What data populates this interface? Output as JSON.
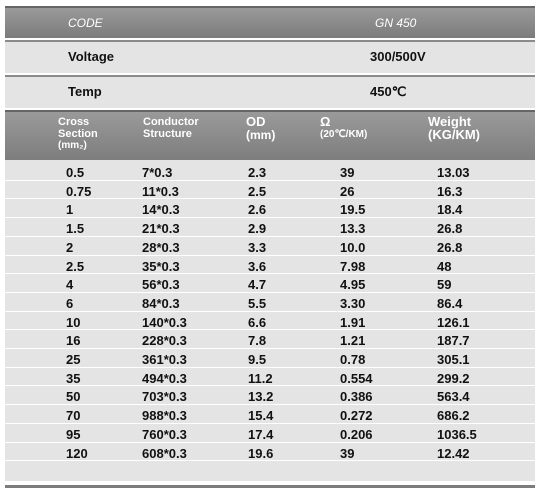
{
  "header": {
    "label": "CODE",
    "value": "GN 450"
  },
  "specs": [
    {
      "label": "Voltage",
      "value": "300/500V"
    },
    {
      "label": "Temp",
      "value": "450℃"
    }
  ],
  "table": {
    "columns": [
      [
        "Cross",
        "Section",
        "(mm₂)"
      ],
      [
        "Conductor",
        "Structure"
      ],
      [
        "OD",
        "(mm)"
      ],
      [
        "Ω",
        "(20℃/KM)"
      ],
      [
        "Weight",
        "(KG/KM)"
      ]
    ],
    "rows": [
      [
        "0.5",
        "7*0.3",
        "2.3",
        "39",
        "13.03"
      ],
      [
        "0.75",
        "11*0.3",
        "2.5",
        "26",
        "16.3"
      ],
      [
        "1",
        "14*0.3",
        "2.6",
        "19.5",
        "18.4"
      ],
      [
        "1.5",
        "21*0.3",
        "2.9",
        "13.3",
        "26.8"
      ],
      [
        "2",
        "28*0.3",
        "3.3",
        "10.0",
        "26.8"
      ],
      [
        "2.5",
        "35*0.3",
        "3.6",
        "7.98",
        "48"
      ],
      [
        "4",
        "56*0.3",
        "4.7",
        "4.95",
        "59"
      ],
      [
        "6",
        "84*0.3",
        "5.5",
        "3.30",
        "86.4"
      ],
      [
        "10",
        "140*0.3",
        "6.6",
        "1.91",
        "126.1"
      ],
      [
        "16",
        "228*0.3",
        "7.8",
        "1.21",
        "187.7"
      ],
      [
        "25",
        "361*0.3",
        "9.5",
        "0.78",
        "305.1"
      ],
      [
        "35",
        "494*0.3",
        "11.2",
        "0.554",
        "299.2"
      ],
      [
        "50",
        "703*0.3",
        "13.2",
        "0.386",
        "563.4"
      ],
      [
        "70",
        "988*0.3",
        "15.4",
        "0.272",
        "686.2"
      ],
      [
        "95",
        "760*0.3",
        "17.4",
        "0.206",
        "1036.5"
      ],
      [
        "120",
        "608*0.3",
        "19.6",
        "39",
        "12.42"
      ]
    ]
  }
}
